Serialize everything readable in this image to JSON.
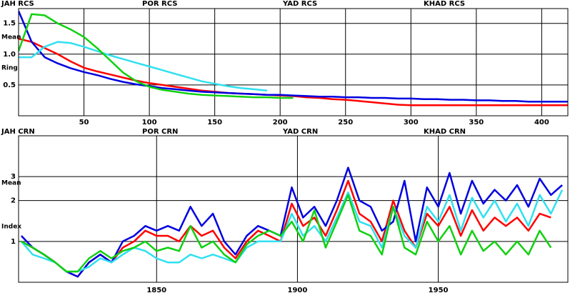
{
  "chart_data": [
    {
      "type": "line",
      "log_y": false,
      "grid": true,
      "ylabel": [
        "Mean",
        "Ring"
      ],
      "xlim": [
        0,
        420
      ],
      "ylim": [
        0,
        1.74
      ],
      "xticks": [
        50,
        100,
        150,
        200,
        250,
        300,
        350,
        400
      ],
      "yticks": [
        0.5,
        {
          "value": 1,
          "label": "1.0"
        },
        1.5
      ],
      "x": [
        0,
        10,
        20,
        30,
        40,
        50,
        60,
        70,
        80,
        90,
        100,
        110,
        120,
        130,
        140,
        150,
        160,
        170,
        180,
        190,
        200,
        210,
        220,
        230,
        240,
        250,
        260,
        270,
        280,
        290,
        300,
        310,
        320,
        330,
        340,
        350,
        360,
        370,
        380,
        390,
        400,
        410,
        420
      ],
      "series": [
        {
          "name": "JAH RCS",
          "color": "#ff0000",
          "values": [
            1.25,
            1.2,
            1.1,
            1.0,
            0.88,
            0.78,
            0.72,
            0.67,
            0.62,
            0.57,
            0.53,
            0.5,
            0.47,
            0.44,
            0.41,
            0.39,
            0.37,
            0.36,
            0.35,
            0.34,
            0.33,
            0.32,
            0.3,
            0.29,
            0.27,
            0.26,
            0.24,
            0.22,
            0.2,
            0.18,
            0.17,
            0.17,
            0.17,
            0.17,
            0.17,
            0.17,
            0.17,
            0.17,
            0.17,
            0.17,
            0.17,
            0.17,
            0.17
          ]
        },
        {
          "name": "POR RCS",
          "color": "#0000e0",
          "values": [
            1.7,
            1.2,
            0.95,
            0.85,
            0.77,
            0.71,
            0.66,
            0.6,
            0.55,
            0.51,
            0.48,
            0.45,
            0.43,
            0.41,
            0.39,
            0.38,
            0.37,
            0.36,
            0.35,
            0.34,
            0.34,
            0.33,
            0.32,
            0.31,
            0.31,
            0.3,
            0.3,
            0.29,
            0.29,
            0.28,
            0.28,
            0.27,
            0.27,
            0.26,
            0.26,
            0.25,
            0.25,
            0.24,
            0.24,
            0.23,
            0.23,
            0.23,
            0.23
          ]
        },
        {
          "name": "YAD RCS",
          "color": "#30e0f0",
          "values": [
            0.95,
            0.95,
            1.12,
            1.2,
            1.18,
            1.12,
            1.05,
            0.98,
            0.92,
            0.86,
            0.8,
            0.74,
            0.68,
            0.62,
            0.56,
            0.52,
            0.48,
            0.45,
            0.43,
            0.41,
            null,
            null,
            null,
            null,
            null,
            null,
            null,
            null,
            null,
            null,
            null,
            null,
            null,
            null,
            null,
            null,
            null,
            null,
            null,
            null,
            null,
            null,
            null
          ]
        },
        {
          "name": "KHAD RCS",
          "color": "#10d010",
          "values": [
            1.05,
            1.65,
            1.63,
            1.5,
            1.4,
            1.28,
            1.1,
            0.9,
            0.7,
            0.56,
            0.47,
            0.42,
            0.39,
            0.36,
            0.34,
            0.33,
            0.32,
            0.31,
            0.3,
            0.3,
            0.29,
            0.29,
            null,
            null,
            null,
            null,
            null,
            null,
            null,
            null,
            null,
            null,
            null,
            null,
            null,
            null,
            null,
            null,
            null,
            null,
            null,
            null,
            null
          ]
        }
      ]
    },
    {
      "type": "line",
      "log_y": true,
      "grid": true,
      "ylabel": [
        "Mean",
        "Index"
      ],
      "xlim": [
        1801,
        1996
      ],
      "ylim": [
        0.5,
        6
      ],
      "xticks": [
        1850,
        1900,
        1950
      ],
      "yticks": [
        1,
        2,
        3
      ],
      "x": [
        1802,
        1806,
        1810,
        1814,
        1818,
        1822,
        1826,
        1830,
        1834,
        1838,
        1842,
        1846,
        1850,
        1854,
        1858,
        1862,
        1866,
        1870,
        1874,
        1878,
        1882,
        1886,
        1890,
        1894,
        1898,
        1902,
        1906,
        1910,
        1914,
        1918,
        1922,
        1926,
        1930,
        1934,
        1938,
        1942,
        1946,
        1950,
        1954,
        1958,
        1962,
        1966,
        1970,
        1974,
        1978,
        1982,
        1986,
        1990,
        1994
      ],
      "series": [
        {
          "name": "JAH CRN",
          "color": "#ff0000",
          "values": [
            1.0,
            0.9,
            0.8,
            0.7,
            0.6,
            0.55,
            0.7,
            0.8,
            0.7,
            0.9,
            1.0,
            1.2,
            1.1,
            1.1,
            1.0,
            1.3,
            1.1,
            1.2,
            0.9,
            0.75,
            1.0,
            1.2,
            1.1,
            1.0,
            1.9,
            1.3,
            1.5,
            1.1,
            1.7,
            2.8,
            1.6,
            1.4,
            1.0,
            2.0,
            1.2,
            0.9,
            1.6,
            1.3,
            1.8,
            1.1,
            1.7,
            1.2,
            1.5,
            1.3,
            1.5,
            1.2,
            1.6,
            1.5,
            null
          ]
        },
        {
          "name": "POR CRN",
          "color": "#0000e0",
          "values": [
            1.1,
            0.9,
            0.8,
            0.7,
            0.6,
            0.55,
            0.7,
            0.8,
            0.7,
            1.0,
            1.1,
            1.3,
            1.2,
            1.3,
            1.2,
            1.8,
            1.3,
            1.6,
            1.0,
            0.8,
            1.1,
            1.3,
            1.2,
            1.1,
            2.5,
            1.5,
            1.8,
            1.3,
            2.0,
            3.5,
            2.0,
            1.8,
            1.2,
            1.4,
            2.8,
            1.0,
            2.5,
            1.8,
            3.2,
            1.6,
            2.8,
            1.9,
            2.4,
            2.0,
            2.6,
            1.8,
            2.9,
            2.2,
            2.6
          ]
        },
        {
          "name": "YAD CRN",
          "color": "#30e0f0",
          "values": [
            1.0,
            0.8,
            0.75,
            0.7,
            0.6,
            0.6,
            0.65,
            0.75,
            0.7,
            0.8,
            0.9,
            0.85,
            0.75,
            0.7,
            0.7,
            0.8,
            0.75,
            0.8,
            0.75,
            0.7,
            0.9,
            1.0,
            1.0,
            1.0,
            1.6,
            1.1,
            1.3,
            1.0,
            1.5,
            2.3,
            1.4,
            1.3,
            0.9,
            1.8,
            1.1,
            0.9,
            1.8,
            1.4,
            2.2,
            1.2,
            2.1,
            1.5,
            2.0,
            1.4,
            1.9,
            1.3,
            2.2,
            1.6,
            2.4
          ]
        },
        {
          "name": "KHAD CRN",
          "color": "#10d010",
          "values": [
            1.0,
            0.9,
            0.8,
            0.7,
            0.6,
            0.6,
            0.75,
            0.85,
            0.75,
            0.85,
            0.9,
            1.0,
            0.85,
            0.9,
            0.85,
            1.3,
            0.9,
            1.0,
            0.8,
            0.7,
            0.95,
            1.1,
            1.2,
            1.1,
            1.4,
            1.0,
            1.7,
            0.9,
            1.4,
            2.2,
            1.2,
            1.1,
            0.8,
            1.8,
            0.9,
            0.8,
            1.4,
            1.0,
            1.3,
            0.8,
            1.2,
            0.85,
            1.0,
            0.8,
            1.0,
            0.8,
            1.2,
            0.9,
            null
          ]
        }
      ]
    }
  ]
}
